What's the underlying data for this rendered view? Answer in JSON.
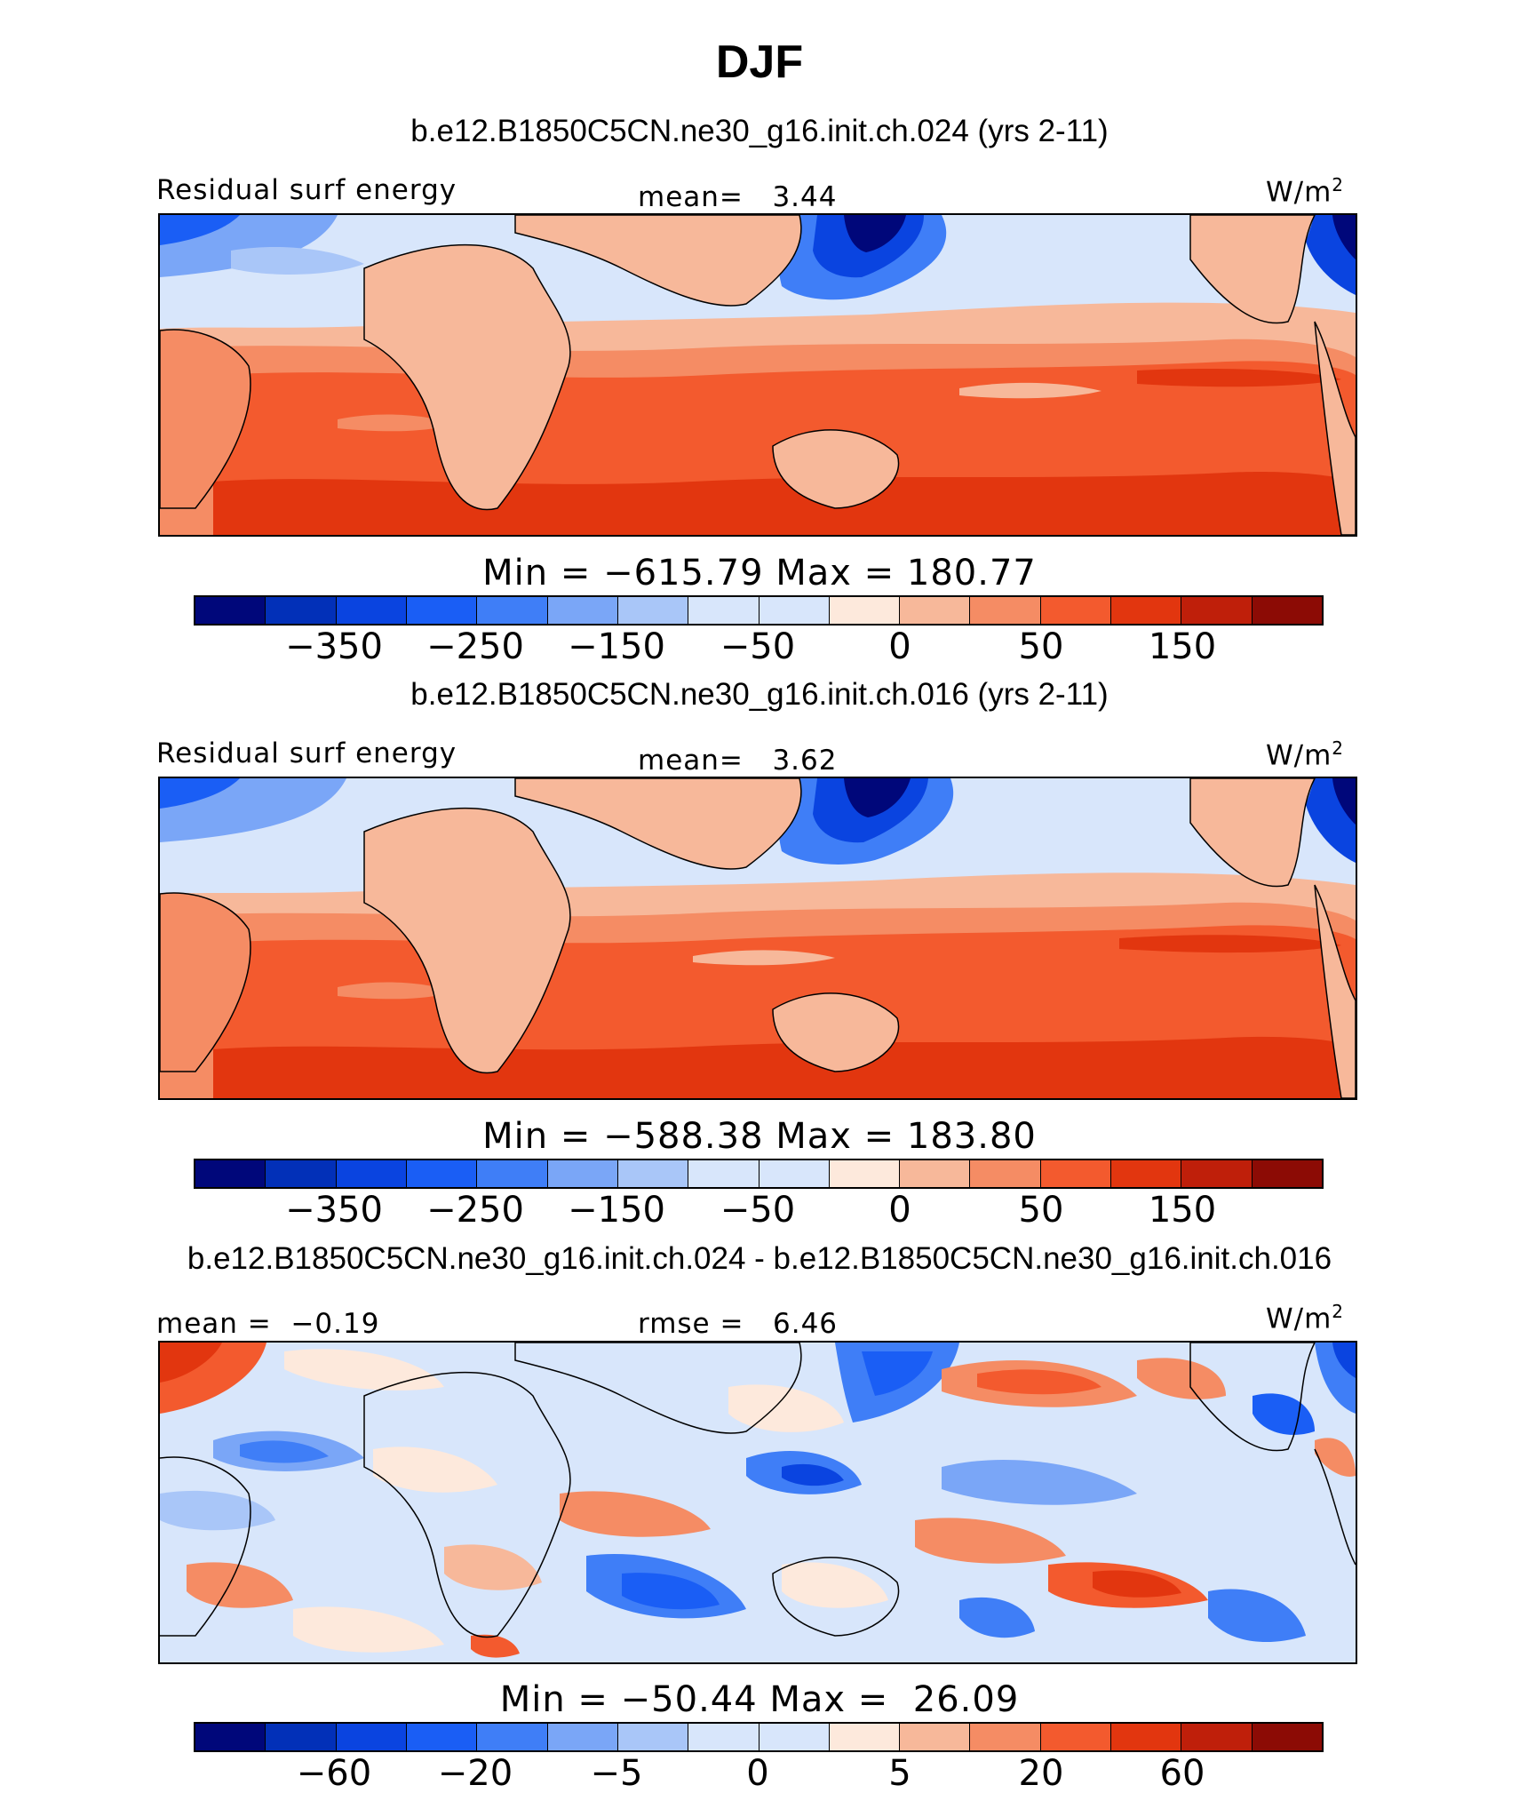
{
  "title": "DJF",
  "colors": [
    "#00077a",
    "#0230b8",
    "#0a44e0",
    "#1a5ef5",
    "#3f7ef7",
    "#7aa6f7",
    "#a9c6f8",
    "#d8e6fb",
    "#fde9dc",
    "#f7b89a",
    "#f58c64",
    "#f35a2e",
    "#e2360f",
    "#bf1f0a",
    "#8c0b05"
  ],
  "panels": [
    {
      "case_title": "b.e12.B1850C5CN.ne30_g16.init.ch.024 (yrs 2-11)",
      "left_label": "Residual surf energy",
      "center_label": "mean=   3.44",
      "units": "W/m",
      "units_sup": "2",
      "min_max": "Min = −615.79 Max = 180.77",
      "colorbar_ticks": [
        "−350",
        "−250",
        "−150",
        "−50",
        "0",
        "50",
        "150"
      ]
    },
    {
      "case_title": "b.e12.B1850C5CN.ne30_g16.init.ch.016 (yrs 2-11)",
      "left_label": "Residual surf energy",
      "center_label": "mean=   3.62",
      "units": "W/m",
      "units_sup": "2",
      "min_max": "Min = −588.38 Max = 183.80",
      "colorbar_ticks": [
        "−350",
        "−250",
        "−150",
        "−50",
        "0",
        "50",
        "150"
      ]
    },
    {
      "case_title": "b.e12.B1850C5CN.ne30_g16.init.ch.024 - b.e12.B1850C5CN.ne30_g16.init.ch.016",
      "left_label": "mean =  −0.19",
      "center_label": "rmse =   6.46",
      "units": "W/m",
      "units_sup": "2",
      "min_max": "Min = −50.44 Max =  26.09",
      "colorbar_ticks": [
        "−60",
        "−20",
        "−5",
        "0",
        "5",
        "20",
        "60"
      ]
    }
  ]
}
